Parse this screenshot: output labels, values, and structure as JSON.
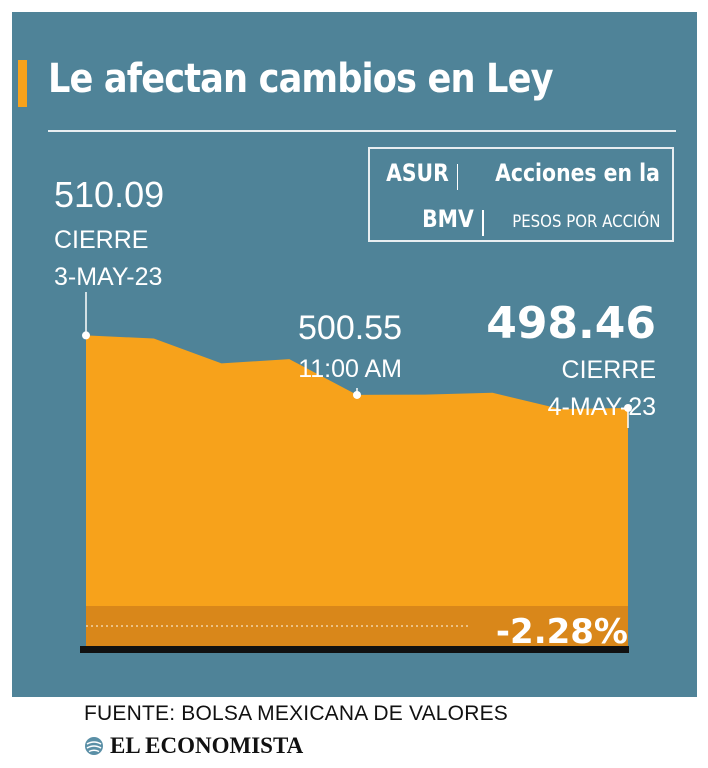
{
  "header": {
    "title": "Le afectan cambios en Ley"
  },
  "legend": {
    "ticker": "ASUR",
    "subject_line1": "Acciones en la",
    "subject_line2": "BMV",
    "units": "PESOS POR ACCIÓN"
  },
  "callouts": {
    "start": {
      "value": "510.09",
      "label": "CIERRE",
      "date": "3-MAY-23"
    },
    "mid": {
      "value": "500.55",
      "time": "11:00 AM"
    },
    "end": {
      "value": "498.46",
      "label": "CIERRE",
      "date": "4-MAY-23"
    },
    "change": "-2.28%"
  },
  "footer": {
    "source": "FUENTE: BOLSA MEXICANA DE VALORES",
    "brand": "EL ECONOMISTA"
  },
  "colors": {
    "background_panel": "#4f8398",
    "area_fill": "#f7a21b",
    "change_band": "#d9871a",
    "text": "#ffffff",
    "baseline": "#111111"
  },
  "chart_data": {
    "type": "area",
    "title": "Le afectan cambios en Ley",
    "subtitle": "ASUR | Acciones en la BMV | PESOS POR ACCIÓN",
    "ylabel": "",
    "xlabel": "",
    "series": [
      {
        "values": [
          510.09,
          509.6,
          505.6,
          506.3,
          500.55,
          500.6,
          500.9,
          498.3,
          498.46
        ]
      }
    ],
    "annotations": [
      {
        "index": 0,
        "value": 510.09,
        "text": "510.09 CIERRE 3-MAY-23"
      },
      {
        "index": 4,
        "value": 500.55,
        "text": "500.55 11:00 AM"
      },
      {
        "index": 8,
        "value": 498.46,
        "text": "498.46 CIERRE 4-MAY-23"
      }
    ],
    "change_percent": -2.28,
    "ylim": [
      460,
      514
    ],
    "grid": false,
    "legend": "top-right"
  }
}
